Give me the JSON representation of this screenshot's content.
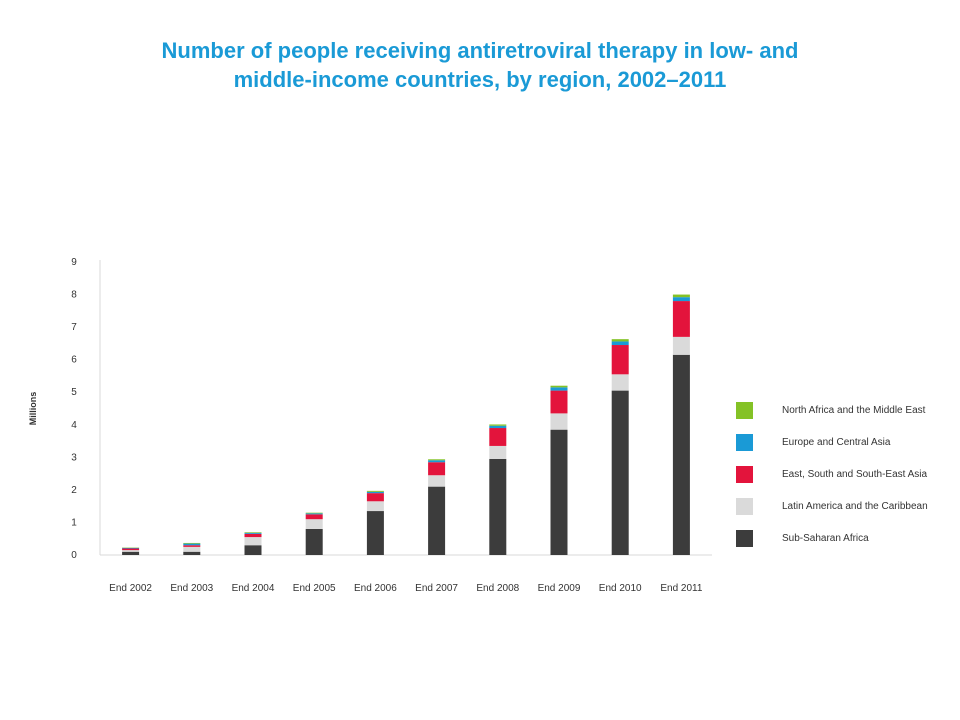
{
  "page_title": [
    "Number of people receiving antiretroviral therapy in low- and",
    "middle-income countries, by region, 2002–2011"
  ],
  "chart_data": {
    "type": "bar",
    "stacked": true,
    "title": "Number of people receiving antiretroviral therapy in low- and middle-income countries, by region, 2002–2011",
    "xlabel": "",
    "ylabel": "Millions",
    "ylim": [
      0,
      9
    ],
    "yticks": [
      0,
      1,
      2,
      3,
      4,
      5,
      6,
      7,
      8,
      9
    ],
    "categories": [
      "End 2002",
      "End 2003",
      "End 2004",
      "End 2005",
      "End 2006",
      "End 2007",
      "End 2008",
      "End 2009",
      "End 2010",
      "End 2011"
    ],
    "series": [
      {
        "name": "Sub-Saharan Africa",
        "color": "#3c3c3c",
        "values": [
          0.1,
          0.1,
          0.3,
          0.8,
          1.35,
          2.1,
          2.95,
          3.85,
          5.05,
          6.15
        ]
      },
      {
        "name": "Latin America and the Caribbean",
        "color": "#dadada",
        "values": [
          0.05,
          0.15,
          0.25,
          0.3,
          0.3,
          0.35,
          0.4,
          0.5,
          0.5,
          0.55
        ]
      },
      {
        "name": "East, South and South-East Asia",
        "color": "#e3143c",
        "values": [
          0.05,
          0.05,
          0.1,
          0.15,
          0.25,
          0.4,
          0.55,
          0.7,
          0.9,
          1.1
        ]
      },
      {
        "name": "Europe and Central Asia",
        "color": "#1a9ad6",
        "values": [
          0.02,
          0.05,
          0.03,
          0.03,
          0.04,
          0.06,
          0.07,
          0.1,
          0.11,
          0.12
        ]
      },
      {
        "name": "North Africa and the Middle East",
        "color": "#84c226",
        "values": [
          0.01,
          0.02,
          0.02,
          0.02,
          0.03,
          0.03,
          0.04,
          0.05,
          0.07,
          0.08
        ]
      }
    ],
    "legend_order": [
      "North Africa and the Middle East",
      "Europe and Central Asia",
      "East, South and South-East Asia",
      "Latin America and the Caribbean",
      "Sub-Saharan Africa"
    ],
    "legend_position": "right",
    "grid": false
  }
}
